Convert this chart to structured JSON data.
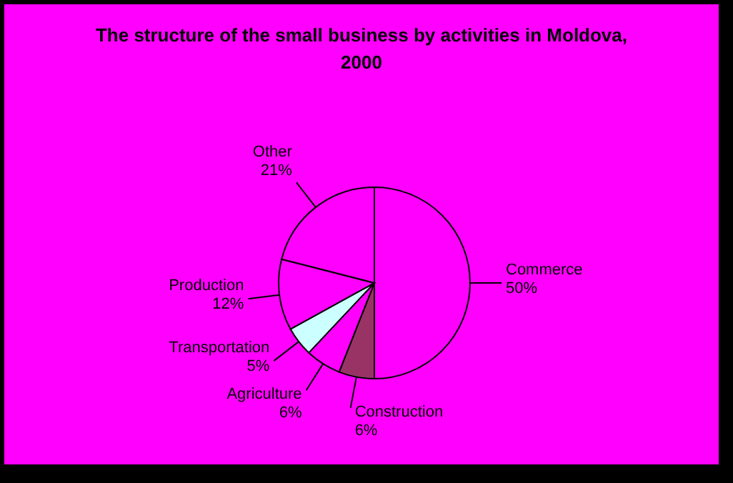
{
  "chart_data": {
    "type": "pie",
    "title": "The structure of the small business by activities in Moldova, 2000",
    "categories": [
      "Commerce",
      "Construction",
      "Agriculture",
      "Transportation",
      "Production",
      "Other"
    ],
    "values": [
      50,
      6,
      6,
      5,
      12,
      21
    ],
    "value_labels": [
      "50%",
      "6%",
      "6%",
      "5%",
      "12%",
      "21%"
    ],
    "colors": [
      "#ff00ff",
      "#993366",
      "#ff00ff",
      "#ccffff",
      "#ff00ff",
      "#ff00ff"
    ],
    "legend": false
  }
}
